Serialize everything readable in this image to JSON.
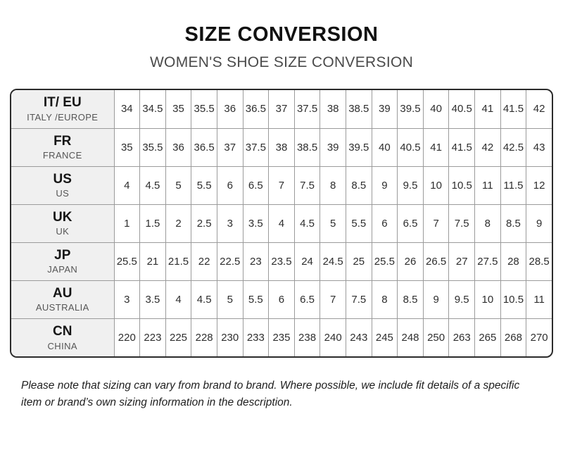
{
  "page": {
    "title": "SIZE CONVERSION",
    "subtitle": "WOMEN'S SHOE SIZE CONVERSION",
    "footer_note": "Please note that sizing can vary from brand to brand. Where possible, we include fit details of a specific item or brand’s own sizing information in the description."
  },
  "colors": {
    "background": "#ffffff",
    "outer_border": "#2b2b2b",
    "inner_border": "#9b9b9b",
    "label_column_bg": "#f0f0f0",
    "title_text": "#111111",
    "subtitle_text": "#4a4a4a",
    "cell_text": "#2e2e2e",
    "region_name_text": "#555555"
  },
  "table": {
    "rows": [
      {
        "code": "IT/ EU",
        "region": "ITALY /EUROPE",
        "values": [
          "34",
          "34.5",
          "35",
          "35.5",
          "36",
          "36.5",
          "37",
          "37.5",
          "38",
          "38.5",
          "39",
          "39.5",
          "40",
          "40.5",
          "41",
          "41.5",
          "42"
        ]
      },
      {
        "code": "FR",
        "region": "FRANCE",
        "values": [
          "35",
          "35.5",
          "36",
          "36.5",
          "37",
          "37.5",
          "38",
          "38.5",
          "39",
          "39.5",
          "40",
          "40.5",
          "41",
          "41.5",
          "42",
          "42.5",
          "43"
        ]
      },
      {
        "code": "US",
        "region": "US",
        "values": [
          "4",
          "4.5",
          "5",
          "5.5",
          "6",
          "6.5",
          "7",
          "7.5",
          "8",
          "8.5",
          "9",
          "9.5",
          "10",
          "10.5",
          "11",
          "11.5",
          "12"
        ]
      },
      {
        "code": "UK",
        "region": "UK",
        "values": [
          "1",
          "1.5",
          "2",
          "2.5",
          "3",
          "3.5",
          "4",
          "4.5",
          "5",
          "5.5",
          "6",
          "6.5",
          "7",
          "7.5",
          "8",
          "8.5",
          "9"
        ]
      },
      {
        "code": "JP",
        "region": "JAPAN",
        "values": [
          "25.5",
          "21",
          "21.5",
          "22",
          "22.5",
          "23",
          "23.5",
          "24",
          "24.5",
          "25",
          "25.5",
          "26",
          "26.5",
          "27",
          "27.5",
          "28",
          "28.5"
        ]
      },
      {
        "code": "AU",
        "region": "AUSTRALIA",
        "values": [
          "3",
          "3.5",
          "4",
          "4.5",
          "5",
          "5.5",
          "6",
          "6.5",
          "7",
          "7.5",
          "8",
          "8.5",
          "9",
          "9.5",
          "10",
          "10.5",
          "11"
        ]
      },
      {
        "code": "CN",
        "region": "CHINA",
        "values": [
          "220",
          "223",
          "225",
          "228",
          "230",
          "233",
          "235",
          "238",
          "240",
          "243",
          "245",
          "248",
          "250",
          "263",
          "265",
          "268",
          "270"
        ]
      }
    ]
  }
}
